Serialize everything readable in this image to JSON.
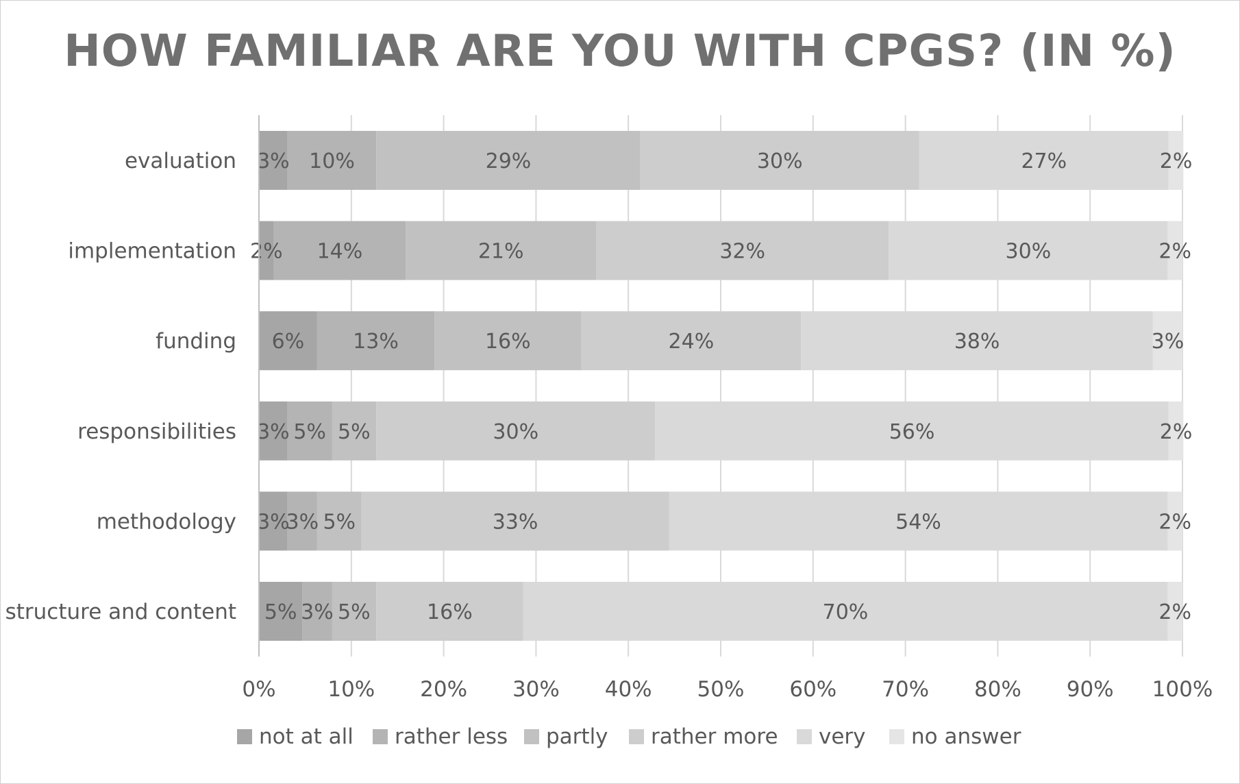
{
  "chart_data": {
    "type": "bar",
    "orientation": "horizontal",
    "stacked": "100%",
    "title": "HOW FAMILIAR ARE YOU WITH CPGS? (IN %)",
    "xlabel": "",
    "ylabel": "",
    "xlim": [
      0,
      100
    ],
    "x_ticks": [
      "0%",
      "10%",
      "20%",
      "30%",
      "40%",
      "50%",
      "60%",
      "70%",
      "80%",
      "90%",
      "100%"
    ],
    "grid": "vertical",
    "legend_position": "bottom",
    "categories": [
      "evaluation",
      "implementation",
      "funding",
      "responsibilities",
      "methodology",
      "structure and content"
    ],
    "series": [
      {
        "name": "not at all",
        "color": "#a6a6a6",
        "values": [
          3.1,
          1.6,
          6.3,
          3.1,
          3.1,
          4.7
        ],
        "labels": [
          "3%",
          "2%",
          "6%",
          "3%",
          "3%",
          "5%"
        ]
      },
      {
        "name": "rather less",
        "color": "#b4b4b4",
        "values": [
          9.6,
          14.3,
          12.7,
          4.8,
          3.2,
          3.2
        ],
        "labels": [
          "10%",
          "14%",
          "13%",
          "5%",
          "3%",
          "3%"
        ]
      },
      {
        "name": "partly",
        "color": "#c1c1c1",
        "values": [
          28.6,
          20.6,
          15.9,
          4.8,
          4.8,
          4.8
        ],
        "labels": [
          "29%",
          "21%",
          "16%",
          "5%",
          "5%",
          "5%"
        ]
      },
      {
        "name": "rather more",
        "color": "#cdcdcd",
        "values": [
          30.2,
          31.7,
          23.8,
          30.2,
          33.3,
          15.9
        ],
        "labels": [
          "30%",
          "32%",
          "24%",
          "30%",
          "33%",
          "16%"
        ]
      },
      {
        "name": "very",
        "color": "#d9d9d9",
        "values": [
          27.0,
          30.2,
          38.1,
          55.6,
          54.0,
          69.8
        ],
        "labels": [
          "27%",
          "30%",
          "38%",
          "56%",
          "54%",
          "70%"
        ]
      },
      {
        "name": "no answer",
        "color": "#e5e5e5",
        "values": [
          1.6,
          1.6,
          3.2,
          1.6,
          1.6,
          1.6
        ],
        "labels": [
          "2%",
          "2%",
          "3%",
          "2%",
          "2%",
          "2%"
        ]
      }
    ]
  }
}
